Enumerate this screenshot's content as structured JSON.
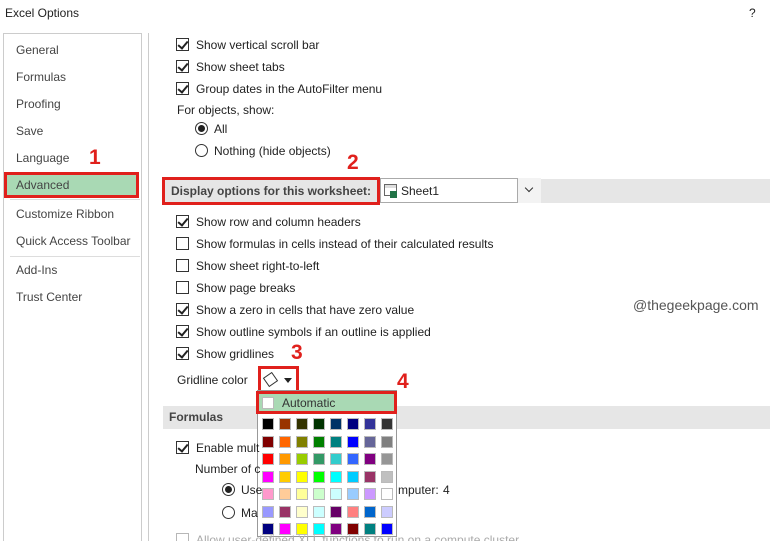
{
  "window": {
    "title": "Excel Options",
    "help": "?"
  },
  "nav": {
    "items": [
      "General",
      "Formulas",
      "Proofing",
      "Save",
      "Language",
      "Advanced",
      "Customize Ribbon",
      "Quick Access Toolbar",
      "Add-Ins",
      "Trust Center"
    ],
    "selected": 5
  },
  "options": {
    "top_checkboxes": [
      {
        "label": "Show vertical scroll bar",
        "checked": true
      },
      {
        "label": "Show sheet tabs",
        "checked": true
      },
      {
        "label": "Group dates in the AutoFilter menu",
        "checked": true
      }
    ],
    "objects_label": "For objects, show:",
    "object_radios": [
      {
        "label": "All",
        "selected": true
      },
      {
        "label": "Nothing (hide objects)",
        "selected": false
      }
    ],
    "worksheet_section": "Display options for this worksheet:",
    "worksheet": "Sheet1",
    "worksheet_checkboxes": [
      {
        "label": "Show row and column headers",
        "checked": true
      },
      {
        "label": "Show formulas in cells instead of their calculated results",
        "checked": false
      },
      {
        "label": "Show sheet right-to-left",
        "checked": false
      },
      {
        "label": "Show page breaks",
        "checked": false
      },
      {
        "label": "Show a zero in cells that have zero value",
        "checked": true
      },
      {
        "label": "Show outline symbols if an outline is applied",
        "checked": true
      },
      {
        "label": "Show gridlines",
        "checked": true
      }
    ],
    "gridline_color_label": "Gridline color",
    "formulas_section": "Formulas",
    "formulas_checkbox": {
      "label": "Enable mult",
      "checked": true
    },
    "threads_label": "Number of c",
    "thread_radios": [
      {
        "label": "Use",
        "selected": true
      },
      {
        "label": "Ma",
        "selected": false
      }
    ],
    "computer_label": "mputer:",
    "computer_value": 4,
    "xll_checkbox": {
      "label": "Allow user-defined XLL functions to run on a compute cluster",
      "checked": false
    }
  },
  "color_palette": {
    "automatic": "Automatic"
  },
  "annotations": {
    "steps": [
      1,
      2,
      3,
      4
    ],
    "watermark": "@thegeekpage.com"
  }
}
